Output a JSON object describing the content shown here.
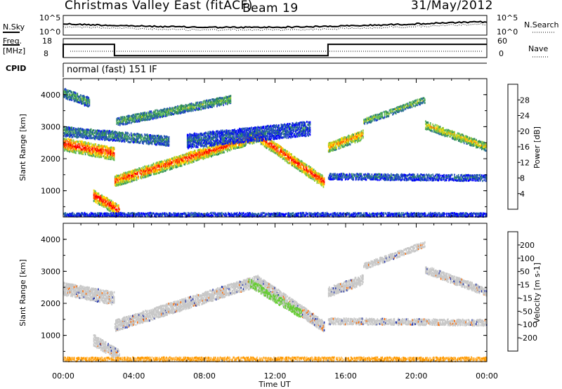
{
  "header": {
    "title": "Christmas Valley East (fitACF)",
    "beam": "Beam 19",
    "date": "31/May/2012"
  },
  "noise_panel": {
    "left_label": "N.Sky",
    "right_label": "N.Search",
    "left_ticks": [
      "10^5",
      "10^0"
    ],
    "right_ticks": [
      "10^5",
      "10^0"
    ]
  },
  "freq_panel": {
    "left_label_1": "Freq.",
    "left_label_2": "[MHz]",
    "right_label": "Nave",
    "left_ticks": [
      "18",
      "8"
    ],
    "right_ticks": [
      "60",
      "0"
    ],
    "freq_steps": [
      {
        "start_h": 0,
        "end_h": 2.9,
        "value": 15
      },
      {
        "start_h": 2.9,
        "end_h": 15.0,
        "value": 9
      },
      {
        "start_h": 15.0,
        "end_h": 24,
        "value": 15
      }
    ]
  },
  "cpid": {
    "label": "CPID",
    "mode": "normal (fast) 151 IF"
  },
  "colors": {
    "power": [
      "#0000ff",
      "#1e40c8",
      "#2e6ea0",
      "#2e8b57",
      "#5cb85c",
      "#9acd32",
      "#ffd700",
      "#ff9900",
      "#ff5500",
      "#ff0000"
    ],
    "velocity": [
      "#ff0000",
      "#ff6a00",
      "#ff9a00",
      "#ffc060",
      "#c8c8c8",
      "#c8c8c8",
      "#66cc33",
      "#2e8b57",
      "#2233aa",
      "#0000cc"
    ]
  },
  "chart_data": [
    {
      "type": "heatmap",
      "name": "Power",
      "xlabel": "",
      "ylabel": "Slant Range [km]",
      "x_range_h": [
        0,
        24
      ],
      "ylim": [
        180,
        4500
      ],
      "y_ticks": [
        "1000",
        "2000",
        "3000",
        "4000"
      ],
      "colorbar_label": "Power [dB]",
      "colorbar_ticks": [
        "4",
        "8",
        "12",
        "16",
        "20",
        "24",
        "28"
      ],
      "echo_bands": [
        {
          "start_h": 0.0,
          "end_h": 2.9,
          "range_start_km": 2500,
          "range_end_km": 2200,
          "width_km": 400,
          "level": 0.85
        },
        {
          "start_h": 0.0,
          "end_h": 1.5,
          "range_start_km": 4100,
          "range_end_km": 3800,
          "width_km": 300,
          "level": 0.35
        },
        {
          "start_h": 0.0,
          "end_h": 6.0,
          "range_start_km": 2900,
          "range_end_km": 2600,
          "width_km": 300,
          "level": 0.3
        },
        {
          "start_h": 1.7,
          "end_h": 3.2,
          "range_start_km": 900,
          "range_end_km": 400,
          "width_km": 350,
          "level": 0.9
        },
        {
          "start_h": 2.9,
          "end_h": 11.0,
          "range_start_km": 1350,
          "range_end_km": 2750,
          "width_km": 350,
          "level": 0.8
        },
        {
          "start_h": 11.0,
          "end_h": 14.8,
          "range_start_km": 2750,
          "range_end_km": 1300,
          "width_km": 350,
          "level": 0.85
        },
        {
          "start_h": 3.0,
          "end_h": 9.5,
          "range_start_km": 3200,
          "range_end_km": 3900,
          "width_km": 250,
          "level": 0.4
        },
        {
          "start_h": 7.0,
          "end_h": 14.0,
          "range_start_km": 2600,
          "range_end_km": 3000,
          "width_km": 450,
          "level": 0.2
        },
        {
          "start_h": 15.0,
          "end_h": 17.0,
          "range_start_km": 2400,
          "range_end_km": 2800,
          "width_km": 300,
          "level": 0.7
        },
        {
          "start_h": 15.0,
          "end_h": 24.0,
          "range_start_km": 1500,
          "range_end_km": 1450,
          "width_km": 200,
          "level": 0.2
        },
        {
          "start_h": 17.0,
          "end_h": 20.5,
          "range_start_km": 3200,
          "range_end_km": 3900,
          "width_km": 200,
          "level": 0.45
        },
        {
          "start_h": 20.5,
          "end_h": 24.0,
          "range_start_km": 3100,
          "range_end_km": 2400,
          "width_km": 250,
          "level": 0.6
        },
        {
          "start_h": 0.0,
          "end_h": 24.0,
          "range_start_km": 300,
          "range_end_km": 300,
          "width_km": 120,
          "level": 0.15
        }
      ]
    },
    {
      "type": "heatmap",
      "name": "Velocity",
      "xlabel": "Time UT",
      "ylabel": "Slant Range [km]",
      "x_range_h": [
        0,
        24
      ],
      "x_ticks": [
        "00:00",
        "04:00",
        "08:00",
        "12:00",
        "16:00",
        "20:00",
        "00:00"
      ],
      "ylim": [
        180,
        4500
      ],
      "y_ticks": [
        "1000",
        "2000",
        "3000",
        "4000"
      ],
      "colorbar_label": "Velocity [m s-1]",
      "colorbar_ticks": [
        "-200",
        "-100",
        "-50",
        "-15",
        "15",
        "50",
        "100",
        "200"
      ],
      "echo_bands": [
        {
          "start_h": 0.0,
          "end_h": 2.9,
          "range_start_km": 2500,
          "range_end_km": 2200,
          "width_km": 400,
          "vel": 0
        },
        {
          "start_h": 1.7,
          "end_h": 3.2,
          "range_start_km": 900,
          "range_end_km": 400,
          "width_km": 350,
          "vel": 0
        },
        {
          "start_h": 2.9,
          "end_h": 11.0,
          "range_start_km": 1350,
          "range_end_km": 2750,
          "width_km": 350,
          "vel": 0
        },
        {
          "start_h": 11.0,
          "end_h": 14.8,
          "range_start_km": 2750,
          "range_end_km": 1300,
          "width_km": 350,
          "vel": 0
        },
        {
          "start_h": 10.5,
          "end_h": 13.5,
          "range_start_km": 2700,
          "range_end_km": 1700,
          "width_km": 250,
          "vel": 1
        },
        {
          "start_h": 15.0,
          "end_h": 17.0,
          "range_start_km": 2400,
          "range_end_km": 2800,
          "width_km": 300,
          "vel": 0
        },
        {
          "start_h": 15.0,
          "end_h": 24.0,
          "range_start_km": 1500,
          "range_end_km": 1450,
          "width_km": 200,
          "vel": 0
        },
        {
          "start_h": 17.0,
          "end_h": 20.5,
          "range_start_km": 3200,
          "range_end_km": 3900,
          "width_km": 200,
          "vel": 0
        },
        {
          "start_h": 20.5,
          "end_h": 24.0,
          "range_start_km": 3100,
          "range_end_km": 2400,
          "width_km": 250,
          "vel": 0
        },
        {
          "start_h": 0.0,
          "end_h": 24.0,
          "range_start_km": 300,
          "range_end_km": 300,
          "width_km": 150,
          "vel": -1
        }
      ]
    }
  ]
}
